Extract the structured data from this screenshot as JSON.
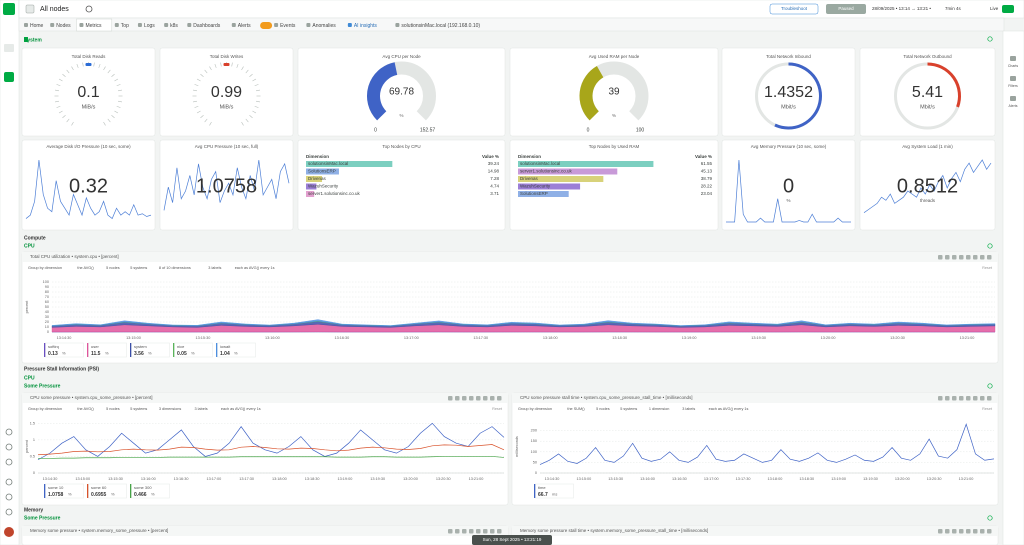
{
  "header": {
    "space": "All nodes",
    "troubleshoot": "Troubleshoot",
    "paused": "Paused",
    "time_range": "28/09/2025 • 13:14 → 13:21 •",
    "duration": "7min 4s",
    "live": "Live"
  },
  "tabs": [
    "Home",
    "Nodes",
    "Metrics",
    "Top",
    "Logs",
    "k8s",
    "Dashboards",
    "Alerts",
    "Events",
    "Anomalies",
    "AI insights",
    "solutionsinMac.local (192.168.0.10)"
  ],
  "right_sidebar": [
    "Charts",
    "Filters",
    "Alerts"
  ],
  "sections": {
    "system": "System",
    "compute": "Compute",
    "cpu": "CPU",
    "psi": "Pressure Stall Information (PSI)",
    "psi_cpu": "CPU",
    "psi_cpu_some": "Some Pressure",
    "memory": "Memory",
    "memory_some": "Some Pressure"
  },
  "gauges": [
    {
      "title": "Total Disk Reads",
      "value": 0.1,
      "unit": "MiB/s",
      "color": "#2b6cd6"
    },
    {
      "title": "Total Disk Writes",
      "value": 0.99,
      "unit": "MiB/s",
      "color": "#d9412c"
    },
    {
      "title": "Avg CPU per Node",
      "value": 69.78,
      "unit": "%",
      "min": 0,
      "max": 152.57,
      "color": "#3f63c6"
    },
    {
      "title": "Avg Used RAM per Node",
      "value": 39,
      "unit": "%",
      "min": 0,
      "max": 100,
      "color": "#a8a61a"
    },
    {
      "title": "Total Network Inbound",
      "value": 1.4352,
      "unit": "Mbit/s",
      "color": "#3f63c6"
    },
    {
      "title": "Total Network Outbound",
      "value": 5.41,
      "unit": "Mbit/s",
      "color": "#d9412c"
    }
  ],
  "stats": [
    {
      "title": "Average Disk I/O Pressure (10 sec, some)",
      "value": 0.32,
      "values": [
        0.05,
        0.1,
        0.3,
        0.9,
        0.4,
        0.2,
        0.15,
        0.6,
        0.3,
        0.2,
        0.1,
        0.4,
        0.25,
        0.1,
        0.35,
        0.2,
        0.1,
        0.15,
        0.3,
        0.1,
        0.05,
        0.2,
        0.1,
        0.15,
        0.1,
        0.25,
        0.1,
        0.12,
        0.08,
        0.1
      ]
    },
    {
      "title": "Avg CPU Pressure (10 sec, full)",
      "value": 1.0758,
      "values": [
        0.3,
        0.9,
        0.5,
        1.4,
        0.6,
        0.8,
        1.2,
        0.7,
        1.5,
        0.9,
        0.6,
        1.1,
        1.3,
        0.5,
        0.8,
        1.0,
        0.7,
        1.4,
        0.9,
        0.6,
        1.2,
        0.8,
        1.6,
        0.7,
        0.9,
        1.1,
        0.6,
        1.3,
        1.5,
        1.0
      ]
    },
    {
      "title": "Avg Memory Pressure (10 sec, some)",
      "value": 0,
      "unit": "%",
      "values": [
        0,
        0,
        0,
        0.8,
        0.1,
        0,
        0,
        0,
        0.05,
        0,
        0,
        0,
        0.3,
        0,
        0,
        0,
        0,
        0.02,
        0,
        0,
        0.1,
        0,
        0,
        0,
        0,
        0,
        0.05,
        0,
        0,
        0
      ]
    },
    {
      "title": "Avg System Load (1 min)",
      "value": 0.8512,
      "unit": "threads",
      "values": [
        0.3,
        0.4,
        0.5,
        0.6,
        0.8,
        0.7,
        0.9,
        0.6,
        0.7,
        0.8,
        1.0,
        0.9,
        0.8,
        1.1,
        0.9,
        1.2,
        1.0,
        1.3,
        1.5,
        1.1,
        1.4,
        1.6,
        1.3,
        1.7,
        1.9,
        1.6,
        1.8,
        2.0,
        1.7,
        1.9
      ]
    }
  ],
  "top_tables": [
    {
      "title": "Top Nodes by CPU",
      "columns": [
        "Dimension",
        "Value %"
      ],
      "colors": [
        "#7ccfc0",
        "#8fb0e6",
        "#d8d27a",
        "#9c7fd6",
        "#e3a0cf"
      ],
      "rows": [
        [
          "solutionsinMac.local",
          39.24
        ],
        [
          "SolutionsERP",
          14.98
        ],
        [
          "Drivenas",
          7.28
        ],
        [
          "WazuhSecurity",
          4.74
        ],
        [
          "server1.solutionsinc.co.uk",
          3.71
        ]
      ]
    },
    {
      "title": "Top Nodes by Used RAM",
      "columns": [
        "Dimension",
        "Value %"
      ],
      "colors": [
        "#7ccfc0",
        "#c89ad8",
        "#d8d27a",
        "#9c7fd6",
        "#8fb0e6"
      ],
      "rows": [
        [
          "solutionsinMac.local",
          61.55
        ],
        [
          "server1.solutionsinc.co.uk",
          45.13
        ],
        [
          "Drivenas",
          38.79
        ],
        [
          "WazuhSecurity",
          28.22
        ],
        [
          "SolutionsERP",
          23.04
        ]
      ]
    }
  ],
  "charts": {
    "cpu_total": {
      "type": "area",
      "title": "Total CPU utilization • system.cpu • [percent]",
      "controls": [
        "Group by dimension",
        "the AVG()",
        "5 nodes",
        "5 systems",
        "8 of 10 dimensions",
        "3 labels",
        "each as AVG() every 1s"
      ],
      "reset": "Reset",
      "ylabel": "percent",
      "unit": "%",
      "ylim": [
        0,
        100
      ],
      "yticks": [
        0,
        10,
        20,
        30,
        40,
        50,
        60,
        70,
        80,
        90,
        100
      ],
      "xticks": [
        "13:14:30",
        "13:15:00",
        "13:15:30",
        "13:16:00",
        "13:16:30",
        "13:17:00",
        "13:17:30",
        "13:18:00",
        "13:18:30",
        "13:19:00",
        "13:19:30",
        "13:20:00",
        "13:20:30",
        "13:21:00"
      ],
      "series": [
        {
          "name": "softirq",
          "color": "#6a4fc2",
          "last": 0.13,
          "values": [
            0.2,
            0.3,
            0.2,
            0.4,
            0.3,
            0.2,
            0.2,
            0.3,
            0.2,
            0.2,
            0.3,
            0.5,
            0.2,
            0.2,
            0.2,
            0.3,
            0.4,
            0.2,
            0.2,
            0.3,
            0.3,
            0.2,
            0.2,
            0.4,
            0.3,
            0.2,
            0.2,
            0.2,
            0.3,
            0.3,
            0.2,
            0.4,
            0.2,
            0.3,
            0.2,
            0.3,
            0.3,
            0.2,
            0.2,
            0.13
          ]
        },
        {
          "name": "user",
          "color": "#e0559c",
          "last": 11.5,
          "values": [
            9,
            11,
            10,
            14,
            12,
            10,
            9,
            13,
            11,
            10,
            12,
            15,
            11,
            10,
            9,
            12,
            14,
            11,
            10,
            13,
            12,
            10,
            11,
            14,
            12,
            11,
            9,
            10,
            13,
            12,
            11,
            14,
            10,
            12,
            11,
            13,
            12,
            10,
            11,
            12
          ]
        },
        {
          "name": "system",
          "color": "#3b4fa8",
          "last": 3.56,
          "values": [
            3,
            4,
            3.5,
            5,
            4,
            3,
            3.2,
            4.5,
            3.8,
            3,
            4,
            5.5,
            3.6,
            3.2,
            3,
            4,
            5,
            3.8,
            3.3,
            4.4,
            4,
            3.1,
            3.6,
            5,
            4.2,
            3.7,
            3,
            3.4,
            4.6,
            4,
            3.6,
            5,
            3.3,
            4,
            3.7,
            4.5,
            4,
            3.2,
            3.6,
            3.56
          ]
        },
        {
          "name": "nice",
          "color": "#5ab55a",
          "last": 0.05,
          "values": [
            0,
            0,
            0,
            0.6,
            0,
            0,
            0,
            0.3,
            0,
            0,
            0,
            0.8,
            0,
            0,
            0,
            0,
            0.5,
            0,
            0,
            0,
            0.2,
            0,
            0,
            0.7,
            0,
            0,
            0,
            0,
            0.4,
            0,
            0,
            0.6,
            0,
            0,
            0,
            0.3,
            0,
            0,
            0,
            0.05
          ]
        },
        {
          "name": "iowait",
          "color": "#4d8fe0",
          "last": 1.04,
          "values": [
            1,
            1.5,
            0.8,
            2.5,
            1.2,
            0.9,
            1,
            2,
            1.1,
            0.8,
            1.4,
            3,
            1,
            0.9,
            0.7,
            1.3,
            2.4,
            1.1,
            0.9,
            1.8,
            1.5,
            0.8,
            1,
            2.6,
            1.3,
            1,
            0.7,
            0.9,
            2,
            1.4,
            1,
            2.5,
            0.9,
            1.3,
            1,
            1.9,
            1.4,
            0.8,
            1,
            1.04
          ]
        }
      ]
    },
    "cpu_some_pressure": {
      "type": "line",
      "title": "CPU some pressure • system.cpu_some_pressure • [percent]",
      "controls": [
        "Group by dimension",
        "the AVG()",
        "5 nodes",
        "5 systems",
        "3 dimensions",
        "3 labels",
        "each as AVG() every 1s"
      ],
      "reset": "Reset",
      "ylabel": "percent",
      "unit": "%",
      "ylim": [
        0,
        1.6
      ],
      "yticks": [
        0,
        0.5,
        1,
        1.5
      ],
      "xticks": [
        "13:14:30",
        "13:15:00",
        "13:15:30",
        "13:16:00",
        "13:16:30",
        "13:17:00",
        "13:17:30",
        "13:18:00",
        "13:18:30",
        "13:19:00",
        "13:19:30",
        "13:20:00",
        "13:20:30",
        "13:21:00"
      ],
      "series": [
        {
          "name": "some 10",
          "color": "#3f63c6",
          "last": 1.0758,
          "values": [
            0.4,
            0.6,
            0.9,
            1.1,
            0.7,
            0.5,
            0.8,
            1.2,
            0.9,
            0.6,
            0.7,
            1.0,
            1.3,
            0.8,
            0.5,
            0.6,
            0.9,
            1.4,
            0.9,
            0.7,
            0.6,
            0.8,
            1.1,
            0.7,
            0.5,
            0.6,
            0.9,
            1.3,
            1.0,
            0.7,
            0.6,
            0.8,
            1.2,
            1.5,
            1.1,
            0.9,
            0.8,
            1.2,
            1.4,
            1.0758
          ]
        },
        {
          "name": "some 60",
          "color": "#d9532c",
          "last": 0.6955,
          "values": [
            0.55,
            0.57,
            0.6,
            0.65,
            0.66,
            0.64,
            0.65,
            0.7,
            0.72,
            0.7,
            0.69,
            0.72,
            0.78,
            0.77,
            0.72,
            0.69,
            0.7,
            0.78,
            0.8,
            0.77,
            0.73,
            0.72,
            0.75,
            0.74,
            0.7,
            0.67,
            0.69,
            0.75,
            0.78,
            0.76,
            0.72,
            0.71,
            0.74,
            0.82,
            0.85,
            0.84,
            0.8,
            0.83,
            0.86,
            0.7
          ]
        },
        {
          "name": "some 300",
          "color": "#47a447",
          "last": 0.466,
          "values": [
            0.44,
            0.44,
            0.45,
            0.45,
            0.46,
            0.46,
            0.46,
            0.47,
            0.47,
            0.47,
            0.47,
            0.48,
            0.48,
            0.48,
            0.48,
            0.48,
            0.48,
            0.49,
            0.49,
            0.49,
            0.49,
            0.49,
            0.49,
            0.49,
            0.49,
            0.48,
            0.48,
            0.48,
            0.49,
            0.49,
            0.48,
            0.48,
            0.48,
            0.49,
            0.5,
            0.5,
            0.5,
            0.5,
            0.5,
            0.47
          ]
        }
      ]
    },
    "cpu_some_pressure_stall_time": {
      "type": "line",
      "title": "CPU some pressure stall time • system.cpu_some_pressure_stall_time • [milliseconds]",
      "controls": [
        "Group by dimension",
        "the SUM()",
        "5 nodes",
        "5 systems",
        "1 dimension",
        "3 labels",
        "each as AVG() every 1s"
      ],
      "reset": "Reset",
      "ylabel": "milliseconds",
      "unit": "ms",
      "ylim": [
        0,
        250
      ],
      "yticks": [
        0,
        50,
        100,
        150,
        200
      ],
      "xticks": [
        "13:14:30",
        "13:15:00",
        "13:15:30",
        "13:16:00",
        "13:16:30",
        "13:17:00",
        "13:17:30",
        "13:18:00",
        "13:18:30",
        "13:19:00",
        "13:19:30",
        "13:20:00",
        "13:20:30",
        "13:21:00"
      ],
      "series": [
        {
          "name": "time",
          "color": "#3f63c6",
          "last": 66.7,
          "values": [
            40,
            60,
            90,
            55,
            45,
            70,
            120,
            60,
            50,
            80,
            140,
            70,
            55,
            65,
            100,
            60,
            50,
            75,
            130,
            65,
            55,
            60,
            90,
            70,
            50,
            60,
            110,
            65,
            55,
            70,
            95,
            60,
            50,
            65,
            85,
            60,
            55,
            75,
            120,
            70,
            60,
            90,
            160,
            80,
            70,
            110,
            230,
            90,
            60,
            66.7
          ]
        }
      ]
    },
    "memory_some_pressure": {
      "title": "Memory some pressure • system.memory_some_pressure • [percent]"
    },
    "memory_some_pressure_stall_time": {
      "title": "Memory some pressure stall time • system.memory_some_pressure_stall_time • [milliseconds]"
    }
  },
  "tooltip": "Sun, 28 Sept 2025 • 13:21:19"
}
